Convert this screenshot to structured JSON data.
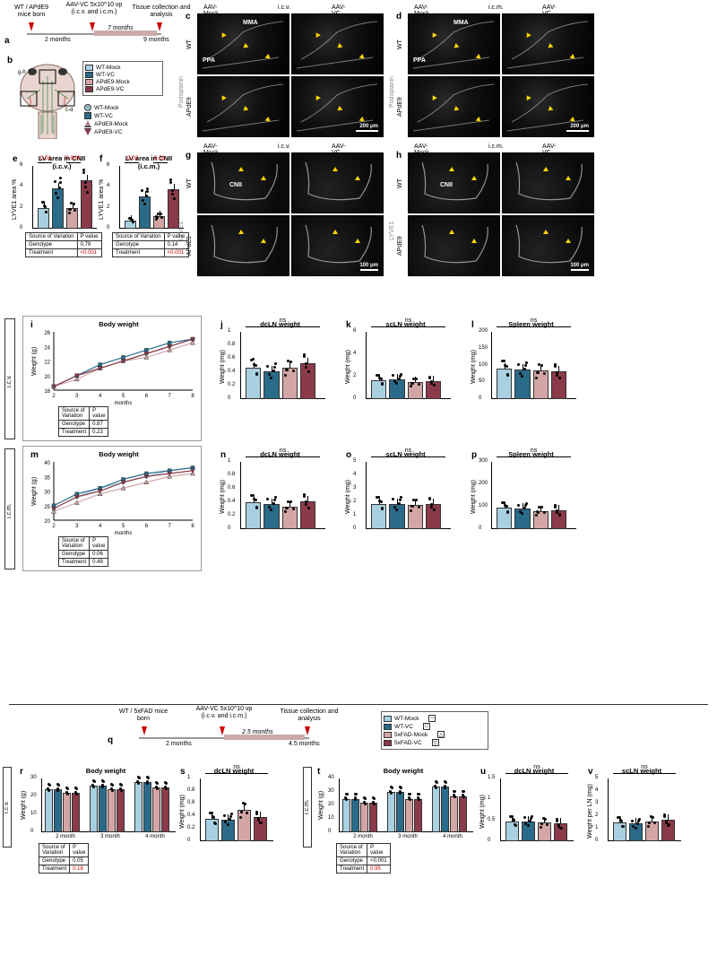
{
  "colors": {
    "wt_mock": "#a8d0e0",
    "wt_vc": "#2a6b8a",
    "ad_mock": "#d4a5a5",
    "ad_vc": "#8b3a4a",
    "fad_mock": "#d4a5a5",
    "fad_vc": "#8b3a4a"
  },
  "timeline_top": {
    "t1": "WT / APdE9\nmice born",
    "t2": "AAV-VC\n5x10^10 vp\n(i.c.v. and i.c.m.)",
    "t3": "Tissue collection\nand analysis",
    "m1": "2 months",
    "m2": "7 months",
    "m3": "9 months"
  },
  "timeline_bottom": {
    "t1": "WT / 5xFAD\nmice born",
    "t2": "AAV-VC\n5x10^10 vp\n(i.c.v. and i.c.m.)",
    "t3": "Tissue collection\nand analysis",
    "m1": "2 months",
    "m2": "2.5 months",
    "m3": "4.5 months"
  },
  "groups": [
    "WT-Mock",
    "WT-VC",
    "APdE9-Mock",
    "APdE9-VC"
  ],
  "groups_fad": [
    "WT-Mock",
    "WT-VC",
    "5xFAD-Mock",
    "5xFAD-VC"
  ],
  "micro_headers": {
    "mock": "AAV-Mock",
    "vc": "AAV-VC",
    "icv": "i.c.v.",
    "icm": "i.c.m."
  },
  "micro_row_labels": {
    "wt": "WT",
    "ad": "APdE9"
  },
  "micro_stain_cd": "Podoplanin",
  "micro_stain_gh": "LYVE1",
  "micro_anat": {
    "mma": "MMA",
    "ppa": "PPA",
    "cnii": "CNII"
  },
  "scale_bars": {
    "cd": "200 μm",
    "gh": "100 μm"
  },
  "panel_e": {
    "title": "LV area in CNII (i.c.v.)",
    "ylabel": "LYVE1 area %",
    "ylim": [
      0,
      6
    ],
    "ytick": 2,
    "values": [
      2.0,
      3.9,
      2.0,
      4.6
    ],
    "p": [
      "0.01",
      "0.003"
    ],
    "stats": [
      [
        "Source of Variation",
        "P value"
      ],
      [
        "Genotype",
        "0.79"
      ],
      [
        "Treatment",
        "<0.001"
      ]
    ]
  },
  "panel_f": {
    "title": "LV area in CNII (i.c.m.)",
    "ylabel": "LYVE1 area %",
    "ylim": [
      0,
      6
    ],
    "ytick": 2,
    "values": [
      0.8,
      3.1,
      1.2,
      3.8
    ],
    "p": [
      "0.02",
      "0.01"
    ],
    "stats": [
      [
        "Source of Variation",
        "P value"
      ],
      [
        "Genotype",
        "0.14"
      ],
      [
        "Treatment",
        "<0.001"
      ]
    ]
  },
  "panel_i": {
    "title": "Body weight",
    "ylabel": "Weight (g)",
    "xlabel": "months",
    "x": [
      2,
      3,
      4,
      5,
      6,
      7,
      8
    ],
    "ylim": [
      18,
      26
    ],
    "ytick": 2,
    "series": {
      "WT-Mock": [
        18.5,
        20,
        21,
        22,
        23,
        24,
        25
      ],
      "WT-VC": [
        18.5,
        20,
        21.5,
        22.5,
        23.5,
        24.5,
        25
      ],
      "APdE9-Mock": [
        18.5,
        19.5,
        21,
        22,
        22.5,
        23.5,
        24.5
      ],
      "APdE9-VC": [
        18.5,
        20,
        21,
        22,
        23,
        24,
        25
      ]
    },
    "stats": [
      [
        "Source of Variation",
        "P value"
      ],
      [
        "Genotype",
        "0.87"
      ],
      [
        "Treatment",
        "0.23"
      ]
    ]
  },
  "panel_m": {
    "title": "Body weight",
    "ylabel": "Weight (g)",
    "xlabel": "months",
    "x": [
      2,
      3,
      4,
      5,
      6,
      7,
      8
    ],
    "ylim": [
      20,
      40
    ],
    "ytick": 5,
    "series": {
      "WT-Mock": [
        24,
        28,
        31,
        33,
        35,
        37,
        38
      ],
      "WT-VC": [
        25,
        29,
        31,
        34,
        36,
        37,
        38
      ],
      "APdE9-Mock": [
        23,
        26,
        29,
        31,
        33,
        35,
        36
      ],
      "APdE9-VC": [
        24,
        28,
        30,
        33,
        35,
        36,
        37
      ]
    },
    "stats": [
      [
        "Source of Variation",
        "P value"
      ],
      [
        "Genotype",
        "0.06"
      ],
      [
        "Treatment",
        "0.49"
      ]
    ]
  },
  "bar_panels": {
    "j": {
      "title": "dcLN weight",
      "ylabel": "Weight (mg)",
      "ylim": [
        0,
        1.0
      ],
      "ytick": 0.2,
      "values": [
        0.47,
        0.42,
        0.47,
        0.54
      ],
      "ns": "ns"
    },
    "k": {
      "title": "scLN weight",
      "ylabel": "Weight (mg)",
      "ylim": [
        0,
        6
      ],
      "ytick": 2,
      "values": [
        1.7,
        1.8,
        1.5,
        1.6
      ],
      "ns": "ns"
    },
    "l": {
      "title": "Spleen weight",
      "ylabel": "Weight (mg)",
      "ylim": [
        0,
        200
      ],
      "ytick": 50,
      "values": [
        90,
        88,
        85,
        83
      ],
      "ns": "ns"
    },
    "n": {
      "title": "dcLN weight",
      "ylabel": "Weight (mg)",
      "ylim": [
        0,
        1.0
      ],
      "ytick": 0.2,
      "values": [
        0.4,
        0.38,
        0.34,
        0.42
      ],
      "ns": "ns"
    },
    "o": {
      "title": "scLN weight",
      "ylabel": "Weight (mg)",
      "ylim": [
        0,
        5
      ],
      "ytick": 1,
      "values": [
        1.9,
        1.9,
        1.8,
        1.9
      ],
      "ns": "ns"
    },
    "p": {
      "title": "Spleen weight",
      "ylabel": "Weight (mg)",
      "ylim": [
        0,
        300
      ],
      "ytick": 100,
      "values": [
        95,
        92,
        82,
        85
      ],
      "ns": "ns"
    },
    "s": {
      "title": "dcLN weight",
      "ylabel": "Weight (mg)",
      "ylim": [
        0,
        1.0
      ],
      "ytick": 0.2,
      "values": [
        0.36,
        0.35,
        0.5,
        0.38
      ],
      "ns": "ns"
    },
    "u": {
      "title": "dcLN weight",
      "ylabel": "Weight (mg)",
      "ylim": [
        0,
        1.5
      ],
      "ytick": 0.5,
      "values": [
        0.48,
        0.48,
        0.45,
        0.42
      ],
      "ns": "ns"
    },
    "v": {
      "title": "scLN weight",
      "ylabel": "Weight per LN (mg)",
      "ylim": [
        0,
        5
      ],
      "ytick": 1,
      "values": [
        1.5,
        1.4,
        1.6,
        1.7
      ],
      "ns": "ns"
    }
  },
  "panel_r": {
    "title": "Body weight",
    "ylabel": "Weight (g)",
    "xlabels": [
      "2 month",
      "3 month",
      "4 month"
    ],
    "ylim": [
      0,
      30
    ],
    "ytick": 10,
    "groups": [
      [
        24,
        24,
        22,
        22
      ],
      [
        26,
        26,
        24,
        24
      ],
      [
        28,
        28,
        25,
        25
      ]
    ],
    "stats": [
      [
        "Source of Variation",
        "P value"
      ],
      [
        "Genotype",
        "0.05"
      ],
      [
        "Treatment",
        "0.18"
      ]
    ],
    "red_row": 1
  },
  "panel_t": {
    "title": "Body weight",
    "ylabel": "Weight (g)",
    "xlabels": [
      "2 month",
      "3 month",
      "4 month"
    ],
    "ylim": [
      0,
      40
    ],
    "ytick": 10,
    "groups": [
      [
        25,
        25,
        22,
        22
      ],
      [
        30,
        30,
        25,
        25
      ],
      [
        34,
        34,
        27,
        27
      ]
    ],
    "stats": [
      [
        "Source of Variation",
        "P value"
      ],
      [
        "Genotype",
        "<0.001"
      ],
      [
        "Treatment",
        "0.95"
      ]
    ],
    "red_row": 1
  },
  "route_labels": {
    "icv": "i.c.v.",
    "icm": "i.c.m."
  },
  "schematic_boxes": [
    "g-h",
    "c-d"
  ],
  "panel_letters": {
    "a": "a",
    "b": "b",
    "c": "c",
    "d": "d",
    "e": "e",
    "f": "f",
    "g": "g",
    "h": "h",
    "i": "i",
    "j": "j",
    "k": "k",
    "l": "l",
    "m": "m",
    "n": "n",
    "o": "o",
    "p": "p",
    "q": "q",
    "r": "r",
    "s": "s",
    "t": "t",
    "u": "u",
    "v": "v"
  }
}
